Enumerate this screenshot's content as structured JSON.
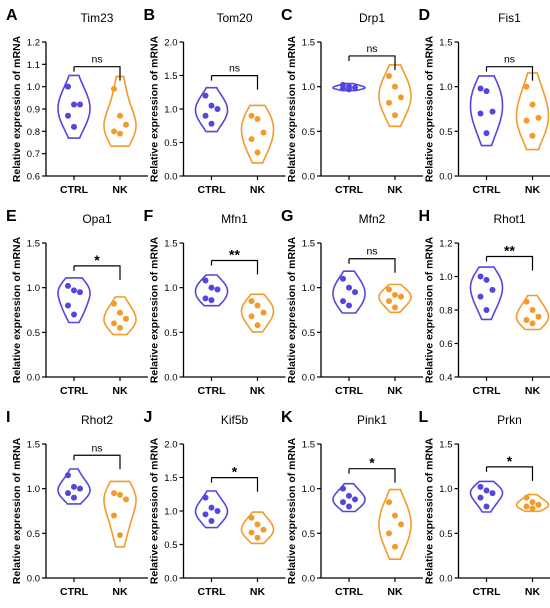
{
  "chart_data": [
    {
      "letter": "A",
      "type": "violin",
      "title": "Tim23",
      "ylabel": "Relative expression of mRNA",
      "categories": [
        "CTRL",
        "NK"
      ],
      "ylim": [
        0.6,
        1.2
      ],
      "yticks": [
        "0.6",
        "0.7",
        "0.8",
        "0.9",
        "1.0",
        "1.1",
        "1.2"
      ],
      "significance": "ns",
      "series": [
        {
          "name": "CTRL",
          "values": [
            1.0,
            0.92,
            0.92,
            0.87,
            0.82
          ]
        },
        {
          "name": "NK",
          "values": [
            0.99,
            0.87,
            0.83,
            0.8,
            0.79
          ]
        }
      ]
    },
    {
      "letter": "B",
      "type": "violin",
      "title": "Tom20",
      "ylabel": "Relative expression of mRNA",
      "categories": [
        "CTRL",
        "NK"
      ],
      "ylim": [
        0.0,
        2.0
      ],
      "yticks": [
        "0.0",
        "0.5",
        "1.0",
        "1.5",
        "2.0"
      ],
      "significance": "ns",
      "series": [
        {
          "name": "CTRL",
          "values": [
            1.2,
            1.05,
            1.0,
            0.9,
            0.78
          ]
        },
        {
          "name": "NK",
          "values": [
            0.9,
            0.85,
            0.65,
            0.55,
            0.35
          ]
        }
      ]
    },
    {
      "letter": "C",
      "type": "violin",
      "title": "Drp1",
      "ylabel": "Relative expression of mRNA",
      "categories": [
        "CTRL",
        "NK"
      ],
      "ylim": [
        0.0,
        1.5
      ],
      "yticks": [
        "0.0",
        "0.5",
        "1.0",
        "1.5"
      ],
      "significance": "ns",
      "series": [
        {
          "name": "CTRL",
          "values": [
            1.02,
            1.0,
            0.99,
            0.98,
            0.97
          ]
        },
        {
          "name": "NK",
          "values": [
            1.12,
            1.0,
            0.88,
            0.82,
            0.68
          ]
        }
      ]
    },
    {
      "letter": "D",
      "type": "violin",
      "title": "Fis1",
      "ylabel": "Relative expression of mRNA",
      "categories": [
        "CTRL",
        "NK"
      ],
      "ylim": [
        0.0,
        1.5
      ],
      "yticks": [
        "0.0",
        "0.5",
        "1.0",
        "1.5"
      ],
      "significance": "ns",
      "series": [
        {
          "name": "CTRL",
          "values": [
            0.98,
            0.95,
            0.72,
            0.7,
            0.48
          ]
        },
        {
          "name": "NK",
          "values": [
            1.0,
            0.8,
            0.65,
            0.62,
            0.45
          ]
        }
      ]
    },
    {
      "letter": "E",
      "type": "violin",
      "title": "Opa1",
      "ylabel": "Relative expression of mRNA",
      "categories": [
        "CTRL",
        "NK"
      ],
      "ylim": [
        0.0,
        1.5
      ],
      "yticks": [
        "0.0",
        "0.5",
        "1.0",
        "1.5"
      ],
      "significance": "*",
      "series": [
        {
          "name": "CTRL",
          "values": [
            1.02,
            0.97,
            0.95,
            0.8,
            0.7
          ]
        },
        {
          "name": "NK",
          "values": [
            0.82,
            0.72,
            0.65,
            0.6,
            0.55
          ]
        }
      ]
    },
    {
      "letter": "F",
      "type": "violin",
      "title": "Mfn1",
      "ylabel": "Relative expression of mRNA",
      "categories": [
        "CTRL",
        "NK"
      ],
      "ylim": [
        0.0,
        1.5
      ],
      "yticks": [
        "0.0",
        "0.5",
        "1.0",
        "1.5"
      ],
      "significance": "**",
      "series": [
        {
          "name": "CTRL",
          "values": [
            1.08,
            1.0,
            0.98,
            0.88,
            0.86
          ]
        },
        {
          "name": "NK",
          "values": [
            0.85,
            0.8,
            0.72,
            0.68,
            0.58
          ]
        }
      ]
    },
    {
      "letter": "G",
      "type": "violin",
      "title": "Mfn2",
      "ylabel": "Relative expression of mRNA",
      "categories": [
        "CTRL",
        "NK"
      ],
      "ylim": [
        0.0,
        1.5
      ],
      "yticks": [
        "0.0",
        "0.5",
        "1.0",
        "1.5"
      ],
      "significance": "ns",
      "series": [
        {
          "name": "CTRL",
          "values": [
            1.1,
            1.0,
            0.95,
            0.85,
            0.8
          ]
        },
        {
          "name": "NK",
          "values": [
            0.98,
            0.92,
            0.9,
            0.85,
            0.78
          ]
        }
      ]
    },
    {
      "letter": "H",
      "type": "violin",
      "title": "Rhot1",
      "ylabel": "Relative expression of mRNA",
      "categories": [
        "CTRL",
        "NK"
      ],
      "ylim": [
        0.4,
        1.2
      ],
      "yticks": [
        "0.4",
        "0.6",
        "0.8",
        "1.0",
        "1.2"
      ],
      "significance": "**",
      "series": [
        {
          "name": "CTRL",
          "values": [
            1.0,
            0.98,
            0.92,
            0.88,
            0.8
          ]
        },
        {
          "name": "NK",
          "values": [
            0.85,
            0.8,
            0.76,
            0.74,
            0.72
          ]
        }
      ]
    },
    {
      "letter": "I",
      "type": "violin",
      "title": "Rhot2",
      "ylabel": "Relative expression of mRNA",
      "categories": [
        "CTRL",
        "NK"
      ],
      "ylim": [
        0.0,
        1.5
      ],
      "yticks": [
        "0.0",
        "0.5",
        "1.0",
        "1.5"
      ],
      "significance": "ns",
      "series": [
        {
          "name": "CTRL",
          "values": [
            1.15,
            1.02,
            1.0,
            0.95,
            0.9
          ]
        },
        {
          "name": "NK",
          "values": [
            0.95,
            0.93,
            0.88,
            0.7,
            0.48
          ]
        }
      ]
    },
    {
      "letter": "J",
      "type": "violin",
      "title": "Kif5b",
      "ylabel": "Relative expression of mRNA",
      "categories": [
        "CTRL",
        "NK"
      ],
      "ylim": [
        0.0,
        2.0
      ],
      "yticks": [
        "0.0",
        "0.5",
        "1.0",
        "1.5",
        "2.0"
      ],
      "significance": "*",
      "series": [
        {
          "name": "CTRL",
          "values": [
            1.2,
            1.05,
            1.0,
            0.95,
            0.85
          ]
        },
        {
          "name": "NK",
          "values": [
            0.9,
            0.8,
            0.72,
            0.68,
            0.6
          ]
        }
      ]
    },
    {
      "letter": "K",
      "type": "violin",
      "title": "Pink1",
      "ylabel": "Relative expression of mRNA",
      "categories": [
        "CTRL",
        "NK"
      ],
      "ylim": [
        0.0,
        1.5
      ],
      "yticks": [
        "0.0",
        "0.5",
        "1.0",
        "1.5"
      ],
      "significance": "*",
      "series": [
        {
          "name": "CTRL",
          "values": [
            1.0,
            0.92,
            0.88,
            0.85,
            0.8
          ]
        },
        {
          "name": "NK",
          "values": [
            0.85,
            0.7,
            0.6,
            0.5,
            0.35
          ]
        }
      ]
    },
    {
      "letter": "L",
      "type": "violin",
      "title": "Prkn",
      "ylabel": "Relative expression of mRNA",
      "categories": [
        "CTRL",
        "NK"
      ],
      "ylim": [
        0.0,
        1.5
      ],
      "yticks": [
        "0.0",
        "0.5",
        "1.0",
        "1.5"
      ],
      "significance": "*",
      "series": [
        {
          "name": "CTRL",
          "values": [
            1.02,
            0.98,
            0.95,
            0.9,
            0.8
          ]
        },
        {
          "name": "NK",
          "values": [
            0.9,
            0.85,
            0.82,
            0.8,
            0.78
          ]
        }
      ]
    }
  ],
  "colors": {
    "CTRL": "#5346e0",
    "NK": "#f39a2b",
    "axis": "#000000"
  }
}
